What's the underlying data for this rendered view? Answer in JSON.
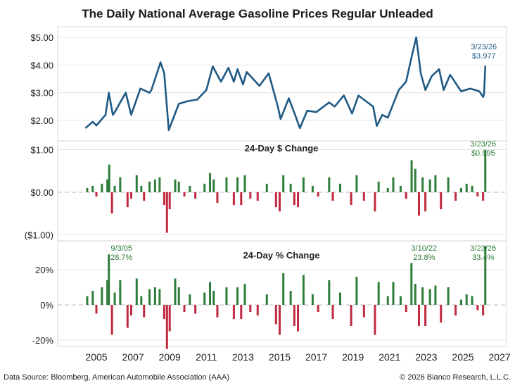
{
  "title": "The Daily National Average Gasoline Prices Regular Unleaded",
  "footer": {
    "source": "Data Source: Bloomberg, American Automobile Association (AAA)",
    "copyright": "© 2026 Bianco Research, L.L.C."
  },
  "colors": {
    "price": "#1f5a85",
    "positive": "#2e7d3a",
    "negative": "#c0283f",
    "grid": "#e4e4e4"
  },
  "chart_data": [
    {
      "type": "line",
      "title": "",
      "ylim": [
        1.5,
        5.3
      ],
      "yticks": [
        2,
        3,
        4,
        5
      ],
      "ytick_labels": [
        "$2.00",
        "$3.00",
        "$4.00",
        "$5.00"
      ],
      "annotation": {
        "date": "3/23/26",
        "value": "$3.977"
      },
      "points": [
        [
          2004.4,
          1.72
        ],
        [
          2004.8,
          1.95
        ],
        [
          2005.0,
          1.82
        ],
        [
          2005.5,
          2.2
        ],
        [
          2005.68,
          3.0
        ],
        [
          2005.9,
          2.2
        ],
        [
          2006.0,
          2.3
        ],
        [
          2006.6,
          3.0
        ],
        [
          2006.9,
          2.2
        ],
        [
          2007.4,
          3.15
        ],
        [
          2007.9,
          3.0
        ],
        [
          2008.0,
          3.1
        ],
        [
          2008.5,
          4.1
        ],
        [
          2008.7,
          3.7
        ],
        [
          2008.95,
          1.65
        ],
        [
          2009.5,
          2.6
        ],
        [
          2010.0,
          2.7
        ],
        [
          2010.5,
          2.75
        ],
        [
          2011.0,
          3.1
        ],
        [
          2011.35,
          3.95
        ],
        [
          2011.8,
          3.4
        ],
        [
          2012.2,
          3.9
        ],
        [
          2012.5,
          3.4
        ],
        [
          2012.7,
          3.85
        ],
        [
          2013.0,
          3.3
        ],
        [
          2013.2,
          3.75
        ],
        [
          2013.9,
          3.25
        ],
        [
          2014.4,
          3.7
        ],
        [
          2014.9,
          2.5
        ],
        [
          2015.05,
          2.05
        ],
        [
          2015.5,
          2.8
        ],
        [
          2015.9,
          2.1
        ],
        [
          2016.1,
          1.72
        ],
        [
          2016.5,
          2.35
        ],
        [
          2017.0,
          2.3
        ],
        [
          2017.7,
          2.65
        ],
        [
          2018.0,
          2.5
        ],
        [
          2018.5,
          2.9
        ],
        [
          2018.95,
          2.25
        ],
        [
          2019.3,
          2.9
        ],
        [
          2019.9,
          2.6
        ],
        [
          2020.1,
          2.5
        ],
        [
          2020.3,
          1.8
        ],
        [
          2020.6,
          2.2
        ],
        [
          2020.9,
          2.1
        ],
        [
          2021.5,
          3.1
        ],
        [
          2021.9,
          3.4
        ],
        [
          2022.2,
          4.3
        ],
        [
          2022.45,
          5.0
        ],
        [
          2022.7,
          3.7
        ],
        [
          2022.95,
          3.1
        ],
        [
          2023.3,
          3.6
        ],
        [
          2023.7,
          3.85
        ],
        [
          2023.95,
          3.1
        ],
        [
          2024.3,
          3.65
        ],
        [
          2024.9,
          3.05
        ],
        [
          2025.4,
          3.15
        ],
        [
          2025.9,
          3.05
        ],
        [
          2026.1,
          2.85
        ],
        [
          2026.15,
          2.95
        ],
        [
          2026.22,
          3.977
        ]
      ]
    },
    {
      "type": "bar",
      "title": "24-Day $ Change",
      "ylim": [
        -1.1,
        1.1
      ],
      "yticks": [
        -1,
        0,
        1
      ],
      "ytick_labels": [
        "($1.00)",
        "$0.00",
        "$1.00"
      ],
      "annotation": {
        "date": "3/23/26",
        "value": "$0.995"
      },
      "points": [
        [
          2004.5,
          0.1
        ],
        [
          2004.8,
          0.15
        ],
        [
          2005.0,
          -0.1
        ],
        [
          2005.3,
          0.2
        ],
        [
          2005.6,
          0.3
        ],
        [
          2005.7,
          0.65
        ],
        [
          2005.85,
          -0.5
        ],
        [
          2006.0,
          0.15
        ],
        [
          2006.3,
          0.35
        ],
        [
          2006.7,
          -0.35
        ],
        [
          2006.9,
          -0.15
        ],
        [
          2007.2,
          0.4
        ],
        [
          2007.45,
          0.15
        ],
        [
          2007.6,
          -0.2
        ],
        [
          2007.9,
          0.25
        ],
        [
          2008.2,
          0.3
        ],
        [
          2008.45,
          0.35
        ],
        [
          2008.7,
          -0.3
        ],
        [
          2008.85,
          -0.95
        ],
        [
          2009.0,
          -0.4
        ],
        [
          2009.3,
          0.3
        ],
        [
          2009.5,
          0.25
        ],
        [
          2009.8,
          -0.1
        ],
        [
          2010.1,
          0.15
        ],
        [
          2010.4,
          -0.15
        ],
        [
          2010.9,
          0.2
        ],
        [
          2011.2,
          0.45
        ],
        [
          2011.4,
          0.3
        ],
        [
          2011.6,
          -0.25
        ],
        [
          2012.1,
          0.35
        ],
        [
          2012.5,
          -0.3
        ],
        [
          2012.7,
          0.35
        ],
        [
          2012.9,
          -0.3
        ],
        [
          2013.1,
          0.4
        ],
        [
          2013.4,
          -0.15
        ],
        [
          2013.8,
          -0.2
        ],
        [
          2014.3,
          0.2
        ],
        [
          2014.8,
          -0.35
        ],
        [
          2015.0,
          -0.45
        ],
        [
          2015.2,
          0.4
        ],
        [
          2015.6,
          0.2
        ],
        [
          2015.8,
          -0.3
        ],
        [
          2016.0,
          -0.35
        ],
        [
          2016.3,
          0.35
        ],
        [
          2016.8,
          0.15
        ],
        [
          2017.1,
          -0.1
        ],
        [
          2017.7,
          0.35
        ],
        [
          2017.9,
          -0.2
        ],
        [
          2018.3,
          0.2
        ],
        [
          2018.9,
          -0.3
        ],
        [
          2019.2,
          0.4
        ],
        [
          2019.6,
          -0.2
        ],
        [
          2020.2,
          -0.45
        ],
        [
          2020.4,
          0.25
        ],
        [
          2020.9,
          0.1
        ],
        [
          2021.2,
          0.35
        ],
        [
          2021.6,
          0.15
        ],
        [
          2021.9,
          -0.15
        ],
        [
          2022.2,
          0.75
        ],
        [
          2022.4,
          0.55
        ],
        [
          2022.6,
          -0.55
        ],
        [
          2022.8,
          0.35
        ],
        [
          2022.95,
          -0.45
        ],
        [
          2023.2,
          0.3
        ],
        [
          2023.5,
          0.4
        ],
        [
          2023.8,
          -0.4
        ],
        [
          2024.2,
          0.35
        ],
        [
          2024.6,
          -0.2
        ],
        [
          2024.9,
          0.1
        ],
        [
          2025.2,
          0.2
        ],
        [
          2025.5,
          0.15
        ],
        [
          2025.8,
          -0.1
        ],
        [
          2026.1,
          -0.2
        ],
        [
          2026.22,
          0.995
        ]
      ]
    },
    {
      "type": "bar",
      "title": "24-Day % Change",
      "ylim": [
        -24,
        36
      ],
      "yticks": [
        -20,
        0,
        20
      ],
      "ytick_labels": [
        "-20%",
        "0%",
        "20%"
      ],
      "annotations": [
        {
          "date": "9/3/05",
          "value": "28.7%",
          "x": 2005.68,
          "y": 28.7
        },
        {
          "date": "3/10/22",
          "value": "23.8%",
          "x": 2022.19,
          "y": 23.8
        },
        {
          "date": "3/23/26",
          "value": "33.4%",
          "x": 2026.22,
          "y": 33.4
        }
      ],
      "points": [
        [
          2004.5,
          5
        ],
        [
          2004.8,
          8
        ],
        [
          2005.0,
          -5
        ],
        [
          2005.3,
          10
        ],
        [
          2005.6,
          14
        ],
        [
          2005.68,
          28.7
        ],
        [
          2005.85,
          -17
        ],
        [
          2006.0,
          7
        ],
        [
          2006.3,
          14
        ],
        [
          2006.7,
          -13
        ],
        [
          2006.9,
          -6
        ],
        [
          2007.2,
          15
        ],
        [
          2007.45,
          5
        ],
        [
          2007.6,
          -7
        ],
        [
          2007.9,
          9
        ],
        [
          2008.2,
          10
        ],
        [
          2008.45,
          9
        ],
        [
          2008.7,
          -8
        ],
        [
          2008.85,
          -25
        ],
        [
          2009.0,
          -15
        ],
        [
          2009.3,
          15
        ],
        [
          2009.5,
          10
        ],
        [
          2009.8,
          -4
        ],
        [
          2010.1,
          6
        ],
        [
          2010.4,
          -5
        ],
        [
          2010.9,
          7
        ],
        [
          2011.2,
          13
        ],
        [
          2011.4,
          8
        ],
        [
          2011.6,
          -7
        ],
        [
          2012.1,
          10
        ],
        [
          2012.5,
          -8
        ],
        [
          2012.7,
          10
        ],
        [
          2012.9,
          -8
        ],
        [
          2013.1,
          12
        ],
        [
          2013.4,
          -4
        ],
        [
          2013.8,
          -6
        ],
        [
          2014.3,
          6
        ],
        [
          2014.8,
          -11
        ],
        [
          2015.0,
          -17
        ],
        [
          2015.2,
          18
        ],
        [
          2015.6,
          8
        ],
        [
          2015.8,
          -12
        ],
        [
          2016.0,
          -15
        ],
        [
          2016.3,
          17
        ],
        [
          2016.8,
          6
        ],
        [
          2017.1,
          -4
        ],
        [
          2017.7,
          14
        ],
        [
          2017.9,
          -8
        ],
        [
          2018.3,
          7
        ],
        [
          2018.9,
          -12
        ],
        [
          2019.2,
          16
        ],
        [
          2019.6,
          -7
        ],
        [
          2020.2,
          -17
        ],
        [
          2020.4,
          13
        ],
        [
          2020.9,
          5
        ],
        [
          2021.2,
          13
        ],
        [
          2021.6,
          5
        ],
        [
          2021.9,
          -4
        ],
        [
          2022.19,
          23.8
        ],
        [
          2022.4,
          12
        ],
        [
          2022.6,
          -12
        ],
        [
          2022.8,
          10
        ],
        [
          2022.95,
          -12
        ],
        [
          2023.2,
          9
        ],
        [
          2023.5,
          11
        ],
        [
          2023.8,
          -10
        ],
        [
          2024.2,
          10
        ],
        [
          2024.6,
          -6
        ],
        [
          2024.9,
          3
        ],
        [
          2025.2,
          6
        ],
        [
          2025.5,
          5
        ],
        [
          2025.8,
          -3
        ],
        [
          2026.1,
          -6
        ],
        [
          2026.22,
          33.4
        ]
      ]
    }
  ],
  "xaxis": {
    "ticks": [
      2005,
      2007,
      2009,
      2011,
      2013,
      2015,
      2017,
      2019,
      2021,
      2023,
      2025,
      2027
    ],
    "labels": [
      "2005",
      "2007",
      "2009",
      "2011",
      "2013",
      "2015",
      "2017",
      "2019",
      "2021",
      "2023",
      "2025",
      "2027"
    ]
  }
}
